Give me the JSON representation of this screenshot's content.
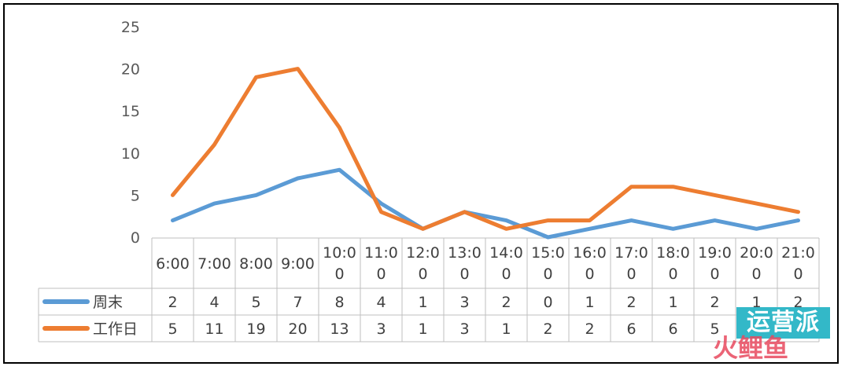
{
  "chart_data": {
    "type": "line",
    "categories": [
      "6:00",
      "7:00",
      "8:00",
      "9:00",
      "10:00",
      "11:00",
      "12:00",
      "13:00",
      "14:00",
      "15:00",
      "16:00",
      "17:00",
      "18:00",
      "19:00",
      "20:00",
      "21:00"
    ],
    "category_labels": [
      [
        "6:00"
      ],
      [
        "7:00"
      ],
      [
        "8:00"
      ],
      [
        "9:00"
      ],
      [
        "10:0",
        "0"
      ],
      [
        "11:0",
        "0"
      ],
      [
        "12:0",
        "0"
      ],
      [
        "13:0",
        "0"
      ],
      [
        "14:0",
        "0"
      ],
      [
        "15:0",
        "0"
      ],
      [
        "16:0",
        "0"
      ],
      [
        "17:0",
        "0"
      ],
      [
        "18:0",
        "0"
      ],
      [
        "19:0",
        "0"
      ],
      [
        "20:0",
        "0"
      ],
      [
        "21:0",
        "0"
      ]
    ],
    "series": [
      {
        "name": "周末",
        "color": "#5b9bd5",
        "values": [
          2,
          4,
          5,
          7,
          8,
          4,
          1,
          3,
          2,
          0,
          1,
          2,
          1,
          2,
          1,
          2
        ]
      },
      {
        "name": "工作日",
        "color": "#ed7d31",
        "values": [
          5,
          11,
          19,
          20,
          13,
          3,
          1,
          3,
          1,
          2,
          2,
          6,
          6,
          5,
          4,
          3
        ]
      }
    ],
    "ylim": [
      0,
      25
    ],
    "yticks": [
      0,
      5,
      10,
      15,
      20,
      25
    ],
    "grid": false,
    "legend": "data-table",
    "data_table": true
  },
  "watermark": {
    "line1": "运营派",
    "line2": "火鲤鱼"
  }
}
